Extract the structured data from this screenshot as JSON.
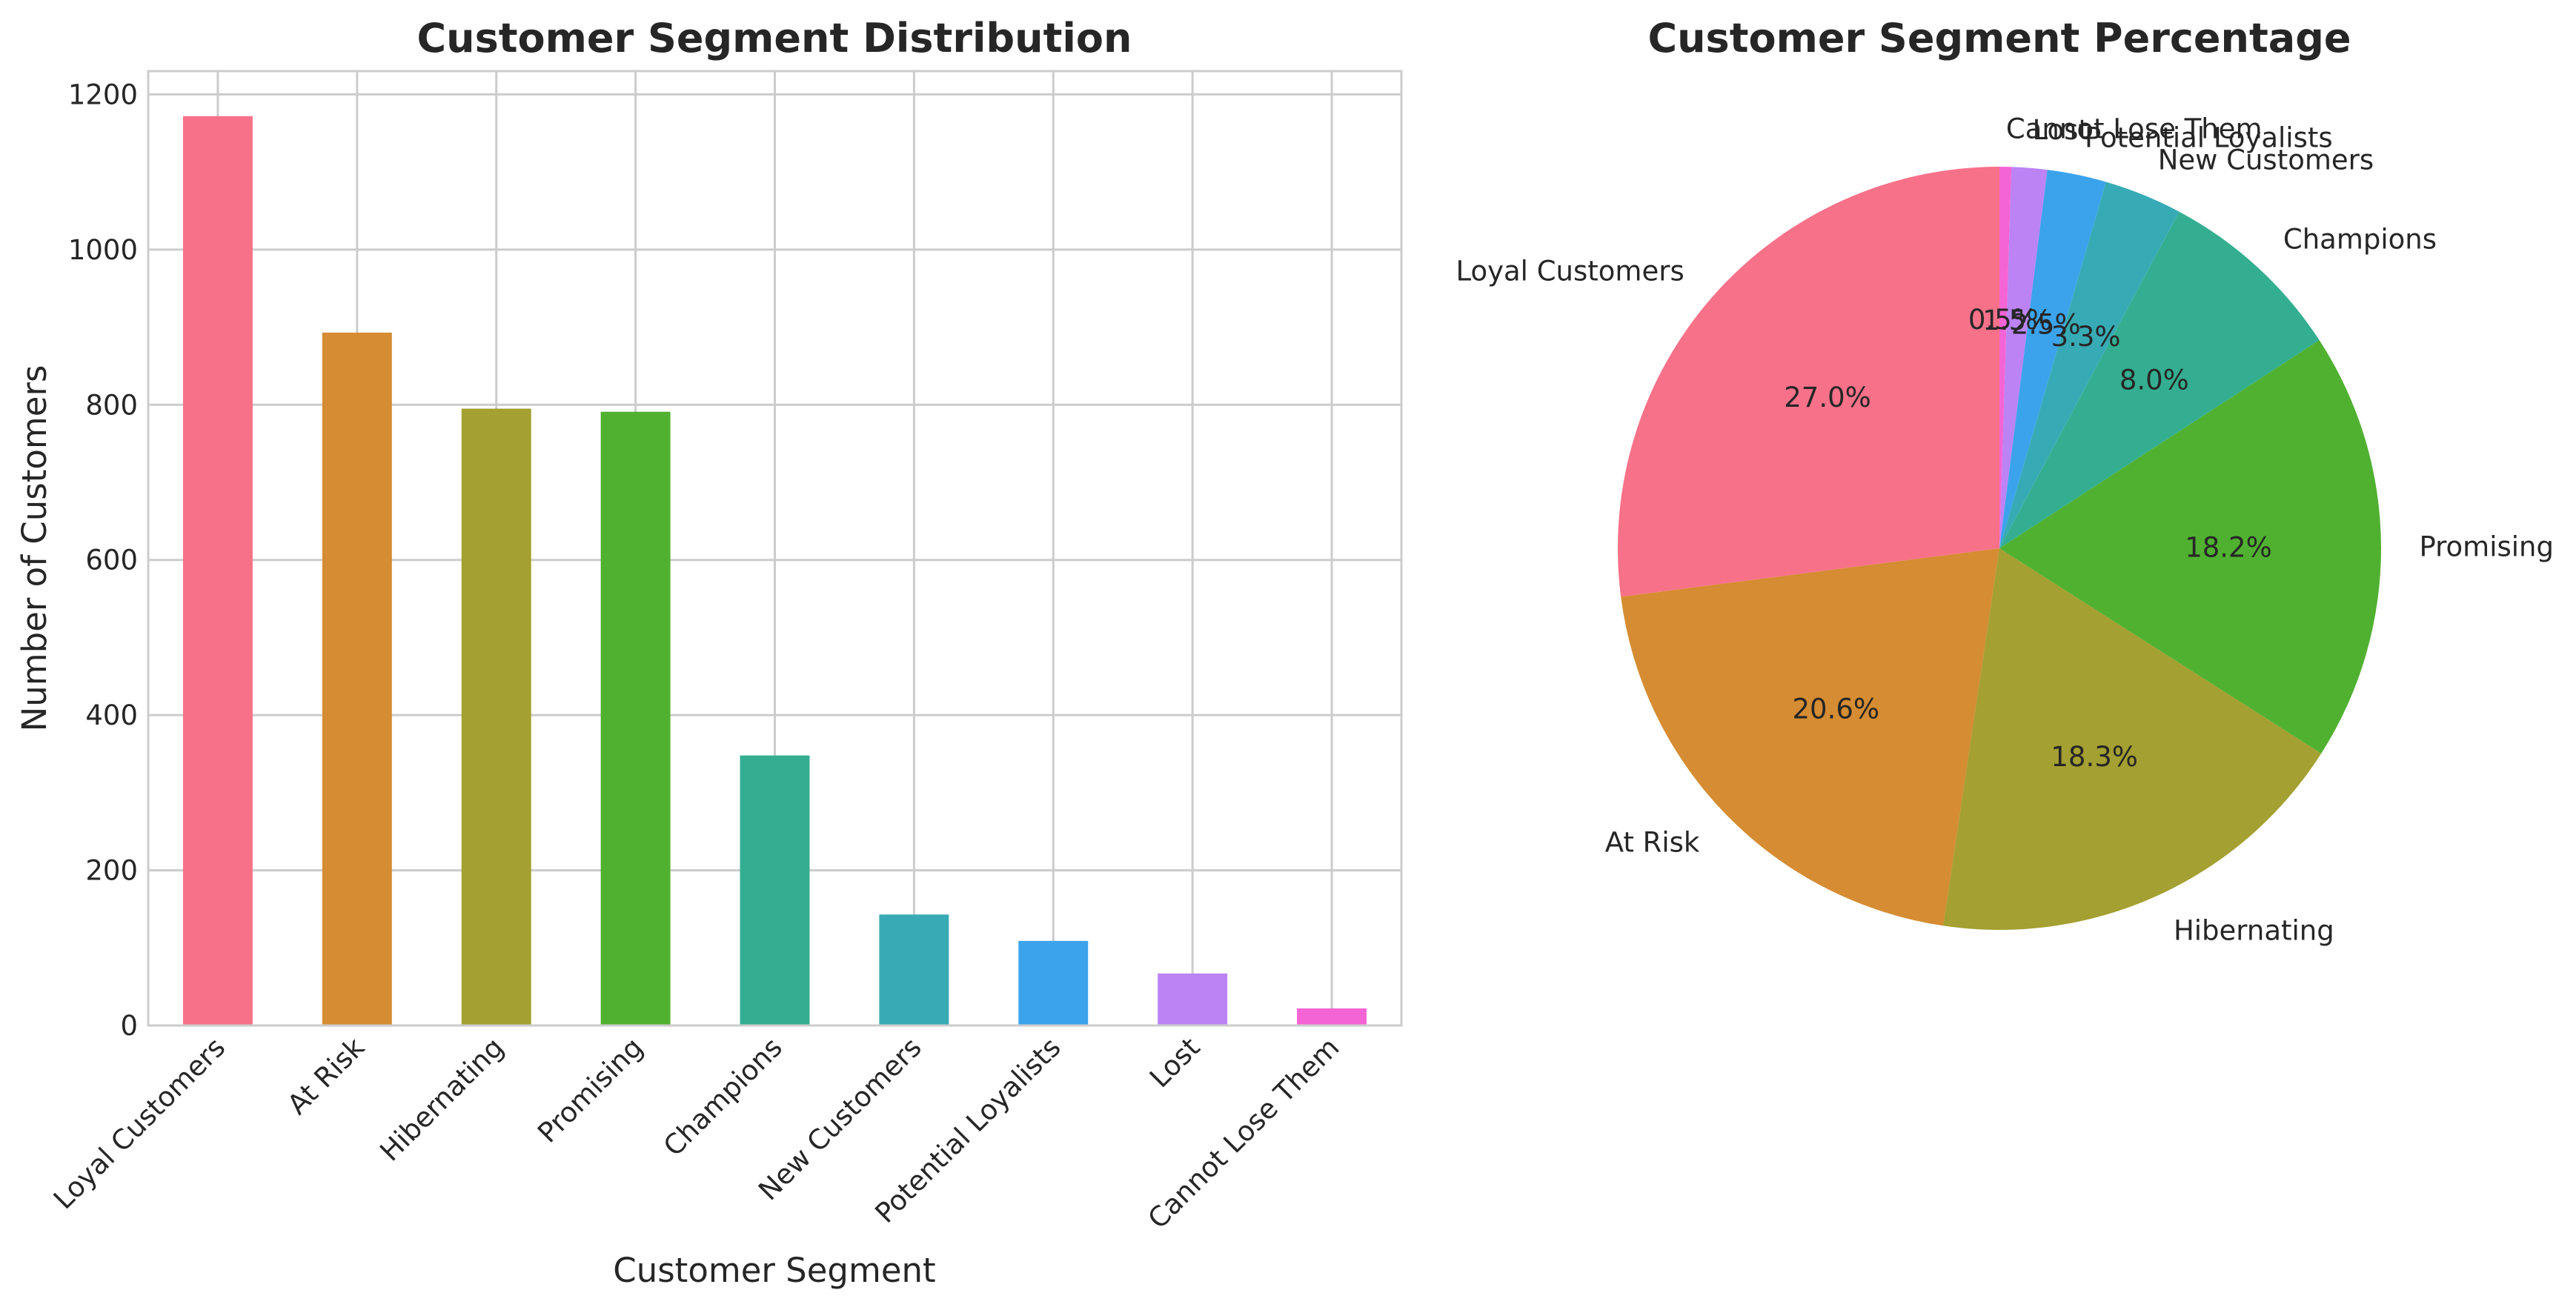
{
  "chart_data": [
    {
      "type": "bar",
      "title": "Customer Segment Distribution",
      "xlabel": "Customer Segment",
      "ylabel": "Number of Customers",
      "categories": [
        "Loyal Customers",
        "At Risk",
        "Hibernating",
        "Promising",
        "Champions",
        "New Customers",
        "Potential Loyalists",
        "Lost",
        "Cannot Lose Them"
      ],
      "values": [
        1172,
        893,
        795,
        791,
        348,
        143,
        109,
        67,
        22
      ],
      "colors": [
        "#f77189",
        "#d58c32",
        "#a4a031",
        "#50b131",
        "#34ae91",
        "#37abb5",
        "#3ba3ec",
        "#bb83f4",
        "#f564d4"
      ],
      "yticks": [
        0,
        200,
        400,
        600,
        800,
        1000,
        1200
      ],
      "ylim": [
        0,
        1230
      ],
      "grid": true
    },
    {
      "type": "pie",
      "title": "Customer Segment Percentage",
      "start_angle": 90,
      "direction": "counterclockwise",
      "slices": [
        {
          "label": "Loyal Customers",
          "value": 27.0,
          "pct_label": "27.0%",
          "color": "#f77189"
        },
        {
          "label": "At Risk",
          "value": 20.6,
          "pct_label": "20.6%",
          "color": "#d58c32"
        },
        {
          "label": "Hibernating",
          "value": 18.3,
          "pct_label": "18.3%",
          "color": "#a4a031"
        },
        {
          "label": "Promising",
          "value": 18.2,
          "pct_label": "18.2%",
          "color": "#50b131"
        },
        {
          "label": "Champions",
          "value": 8.0,
          "pct_label": "8.0%",
          "color": "#34ae91"
        },
        {
          "label": "New Customers",
          "value": 3.3,
          "pct_label": "3.3%",
          "color": "#37abb5"
        },
        {
          "label": "Potential Loyalists",
          "value": 2.5,
          "pct_label": "2.5%",
          "color": "#3ba3ec"
        },
        {
          "label": "Lost",
          "value": 1.5,
          "pct_label": "1.5%",
          "color": "#bb83f4"
        },
        {
          "label": "Cannot Lose Them",
          "value": 0.5,
          "pct_label": "0.5%",
          "color": "#f564d4"
        }
      ]
    }
  ]
}
